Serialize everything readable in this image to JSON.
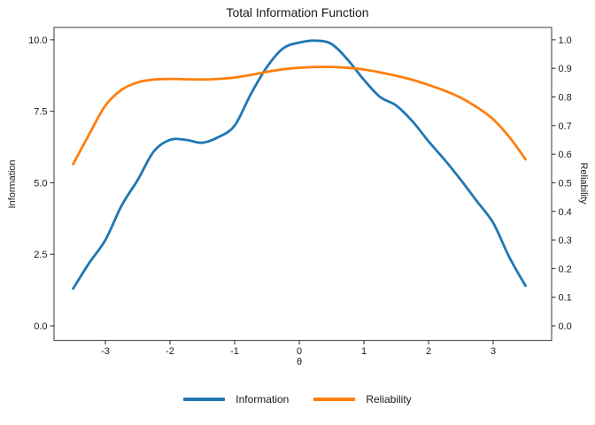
{
  "title": "Total Information Function",
  "colors": {
    "information_line": "#1f77b4",
    "reliability_line": "#ff7f0e",
    "panel_border": "#595959",
    "tick": "#333333",
    "text": "#1a1a1a"
  },
  "legend": {
    "entries": [
      {
        "label": "Information",
        "color": "#1f77b4"
      },
      {
        "label": "Reliability",
        "color": "#ff7f0e"
      }
    ]
  },
  "chart_data": {
    "type": "line",
    "title": "Total Information Function",
    "xlabel": "θ",
    "grid": false,
    "legend_position": "bottom",
    "xlim": [
      -3.795,
      3.904
    ],
    "x_axis": {
      "tick_values": [
        -3,
        -2,
        -1,
        0,
        1,
        2,
        3
      ],
      "tick_labels": [
        "-3",
        "-2",
        "-1",
        "0",
        "1",
        "2",
        "3"
      ]
    },
    "left_axis": {
      "label": "Information",
      "range": [
        -0.51,
        10.43
      ],
      "tick_values": [
        0,
        2.5,
        5,
        7.5,
        10
      ],
      "tick_labels": [
        "0.0",
        "2.5",
        "5.0",
        "7.5",
        "10.0"
      ]
    },
    "right_axis": {
      "label": "Reliability",
      "range": [
        -0.051,
        1.043
      ],
      "tick_values": [
        0,
        0.1,
        0.2,
        0.3,
        0.4,
        0.5,
        0.6,
        0.7,
        0.8,
        0.9,
        1.0
      ],
      "tick_labels": [
        "0.0",
        "0.1",
        "0.2",
        "0.3",
        "0.4",
        "0.5",
        "0.6",
        "0.7",
        "0.8",
        "0.9",
        "1.0"
      ]
    },
    "x": [
      -3.5,
      -3.25,
      -3.0,
      -2.75,
      -2.5,
      -2.25,
      -2.0,
      -1.75,
      -1.5,
      -1.25,
      -1.0,
      -0.75,
      -0.5,
      -0.25,
      0.0,
      0.25,
      0.5,
      0.75,
      1.0,
      1.25,
      1.5,
      1.75,
      2.0,
      2.25,
      2.5,
      2.75,
      3.0,
      3.25,
      3.5
    ],
    "series": [
      {
        "name": "Information",
        "axis": "left",
        "color": "#1f77b4",
        "values": [
          1.3,
          2.2,
          3.0,
          4.2,
          5.1,
          6.1,
          6.5,
          6.5,
          6.4,
          6.6,
          7.0,
          8.1,
          9.05,
          9.7,
          9.9,
          9.97,
          9.85,
          9.3,
          8.6,
          8.0,
          7.7,
          7.15,
          6.45,
          5.8,
          5.1,
          4.35,
          3.6,
          2.4,
          1.4
        ]
      },
      {
        "name": "Reliability",
        "axis": "right",
        "color": "#ff7f0e",
        "values": [
          0.565,
          0.67,
          0.77,
          0.825,
          0.851,
          0.861,
          0.863,
          0.862,
          0.861,
          0.863,
          0.868,
          0.877,
          0.888,
          0.897,
          0.902,
          0.905,
          0.905,
          0.902,
          0.896,
          0.886,
          0.874,
          0.86,
          0.842,
          0.822,
          0.797,
          0.764,
          0.722,
          0.66,
          0.582
        ]
      }
    ]
  }
}
